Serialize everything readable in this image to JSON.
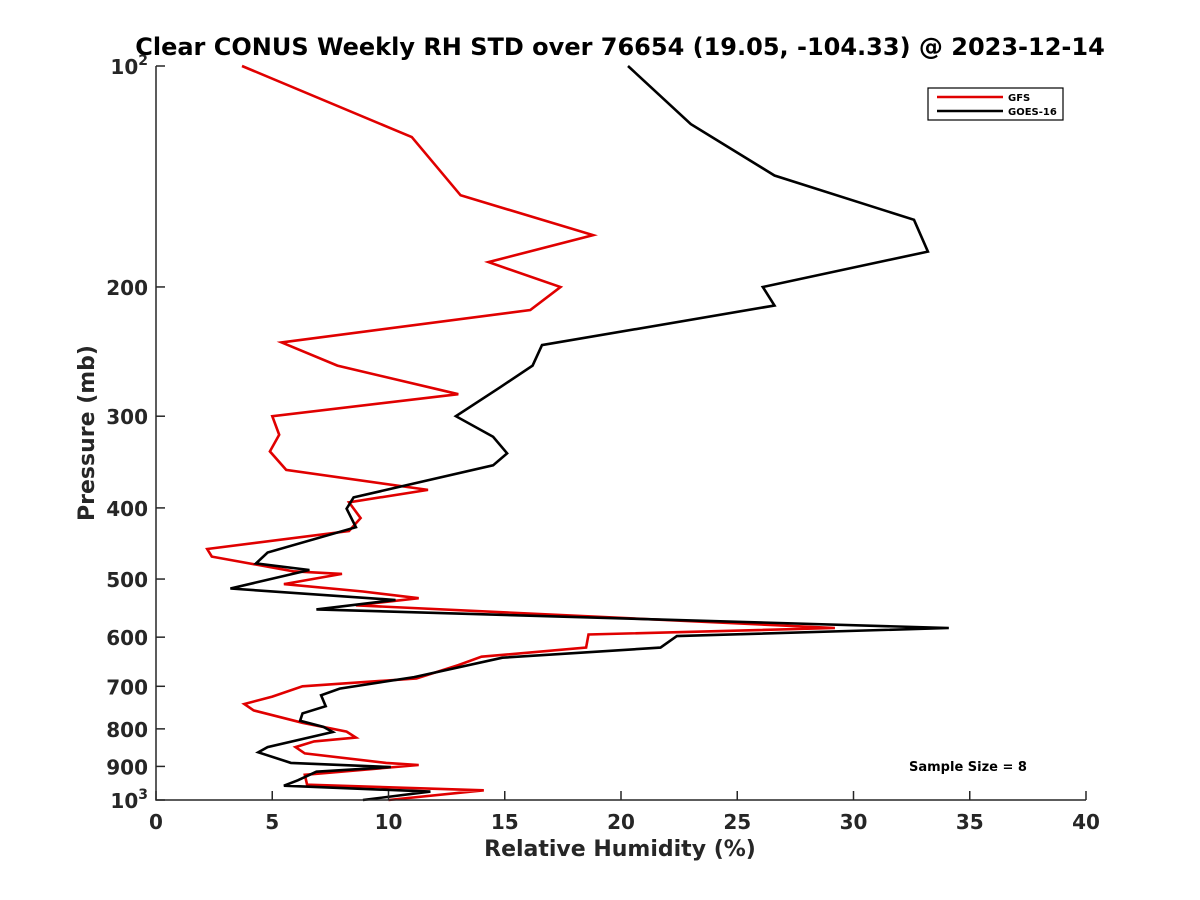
{
  "chart_data": {
    "type": "line",
    "title": "Clear CONUS Weekly RH STD over 76654 (19.05, -104.33) @ 2023-12-14",
    "xlabel": "Relative Humidity (%)",
    "ylabel": "Pressure (mb)",
    "xlim": [
      0,
      40
    ],
    "ylim": [
      100,
      1000
    ],
    "yscale": "log",
    "y_reversed": true,
    "x_ticks": [
      0,
      5,
      10,
      15,
      20,
      25,
      30,
      35,
      40
    ],
    "x_tick_labels": [
      "0",
      "5",
      "10",
      "15",
      "20",
      "25",
      "30",
      "35",
      "40"
    ],
    "y_ticks": [
      100,
      200,
      300,
      400,
      500,
      600,
      700,
      800,
      900,
      1000
    ],
    "y_tick_labels": [
      {
        "base": "10",
        "exp": "2"
      },
      {
        "base": "200",
        "exp": ""
      },
      {
        "base": "300",
        "exp": ""
      },
      {
        "base": "400",
        "exp": ""
      },
      {
        "base": "500",
        "exp": ""
      },
      {
        "base": "600",
        "exp": ""
      },
      {
        "base": "700",
        "exp": ""
      },
      {
        "base": "800",
        "exp": ""
      },
      {
        "base": "900",
        "exp": ""
      },
      {
        "base": "10",
        "exp": "3"
      }
    ],
    "grid": false,
    "legend_position": "top-right",
    "annotation": "Sample Size = 8",
    "series": [
      {
        "name": "GFS",
        "color": "#e00000",
        "points": [
          [
            3.7,
            100
          ],
          [
            11.0,
            125
          ],
          [
            13.1,
            150
          ],
          [
            18.8,
            170
          ],
          [
            14.3,
            185
          ],
          [
            17.4,
            200
          ],
          [
            16.1,
            215
          ],
          [
            5.4,
            238
          ],
          [
            7.8,
            256
          ],
          [
            13.0,
            280
          ],
          [
            5.0,
            300
          ],
          [
            5.3,
            318
          ],
          [
            4.9,
            335
          ],
          [
            5.6,
            355
          ],
          [
            11.7,
            378
          ],
          [
            8.3,
            393
          ],
          [
            8.8,
            413
          ],
          [
            8.3,
            430
          ],
          [
            2.2,
            455
          ],
          [
            2.4,
            466
          ],
          [
            5.9,
            488
          ],
          [
            8.0,
            492
          ],
          [
            5.5,
            508
          ],
          [
            8.9,
            520
          ],
          [
            11.3,
            531
          ],
          [
            8.6,
            543
          ],
          [
            29.2,
            583
          ],
          [
            18.6,
            595
          ],
          [
            18.5,
            620
          ],
          [
            14.0,
            638
          ],
          [
            13.0,
            655
          ],
          [
            11.2,
            683
          ],
          [
            6.3,
            700
          ],
          [
            5.0,
            723
          ],
          [
            3.8,
            740
          ],
          [
            4.2,
            755
          ],
          [
            6.3,
            785
          ],
          [
            8.2,
            807
          ],
          [
            8.6,
            822
          ],
          [
            6.8,
            832
          ],
          [
            6.0,
            847
          ],
          [
            6.4,
            864
          ],
          [
            9.9,
            890
          ],
          [
            11.3,
            896
          ],
          [
            6.4,
            924
          ],
          [
            6.5,
            953
          ],
          [
            14.1,
            970
          ],
          [
            10.0,
            1000
          ]
        ]
      },
      {
        "name": "GOES-16",
        "color": "#000000",
        "points": [
          [
            20.3,
            100
          ],
          [
            23.0,
            120
          ],
          [
            26.6,
            141
          ],
          [
            32.6,
            162
          ],
          [
            33.2,
            179
          ],
          [
            26.1,
            200
          ],
          [
            26.6,
            212
          ],
          [
            16.6,
            240
          ],
          [
            16.2,
            256
          ],
          [
            14.8,
            274
          ],
          [
            12.9,
            300
          ],
          [
            14.5,
            320
          ],
          [
            15.1,
            337
          ],
          [
            14.5,
            350
          ],
          [
            8.5,
            387
          ],
          [
            8.2,
            401
          ],
          [
            8.6,
            425
          ],
          [
            4.8,
            460
          ],
          [
            4.3,
            476
          ],
          [
            6.6,
            486
          ],
          [
            3.2,
            515
          ],
          [
            10.3,
            534
          ],
          [
            6.9,
            550
          ],
          [
            34.1,
            583
          ],
          [
            22.4,
            598
          ],
          [
            21.7,
            620
          ],
          [
            14.9,
            640
          ],
          [
            11.1,
            680
          ],
          [
            7.9,
            705
          ],
          [
            7.1,
            720
          ],
          [
            7.3,
            745
          ],
          [
            6.3,
            762
          ],
          [
            6.2,
            780
          ],
          [
            7.2,
            795
          ],
          [
            7.6,
            808
          ],
          [
            4.8,
            847
          ],
          [
            4.4,
            861
          ],
          [
            5.8,
            890
          ],
          [
            10.1,
            902
          ],
          [
            6.9,
            915
          ],
          [
            6.1,
            940
          ],
          [
            5.5,
            956
          ],
          [
            11.8,
            974
          ],
          [
            8.9,
            1000
          ]
        ]
      }
    ]
  }
}
